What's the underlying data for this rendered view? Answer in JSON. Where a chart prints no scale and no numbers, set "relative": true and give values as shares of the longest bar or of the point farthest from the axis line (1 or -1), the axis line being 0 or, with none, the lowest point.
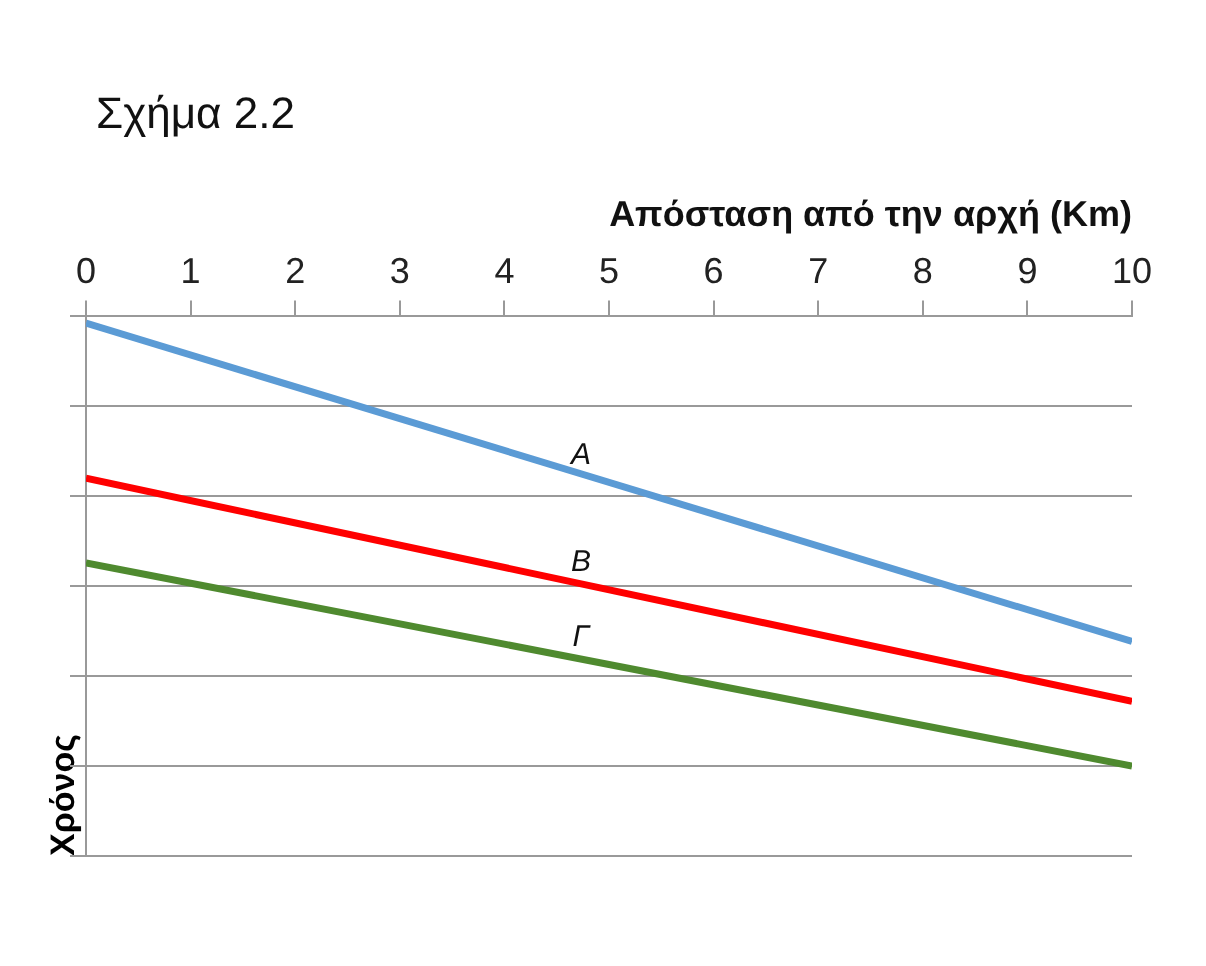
{
  "chart_data": {
    "type": "line",
    "title": "Σχήμα 2.2",
    "xlabel": "Απόσταση από την αρχή (Km)",
    "ylabel": "Χρόνος",
    "x": [
      0,
      10
    ],
    "xlim": [
      0,
      10
    ],
    "xticks": [
      0,
      1,
      2,
      3,
      4,
      5,
      6,
      7,
      8,
      9,
      10
    ],
    "relative": true,
    "grid": "y",
    "legend": false,
    "marker": "none",
    "line_style": "solid",
    "series": [
      {
        "name": "A",
        "color": "#5b9bd5",
        "values": [
          -0.015,
          -0.723
        ]
      },
      {
        "name": "B",
        "color": "#ff0000",
        "values": [
          -0.36,
          -0.856
        ]
      },
      {
        "name": "Γ",
        "color": "#4f8a2f",
        "values": [
          -0.548,
          -1
        ]
      }
    ]
  }
}
